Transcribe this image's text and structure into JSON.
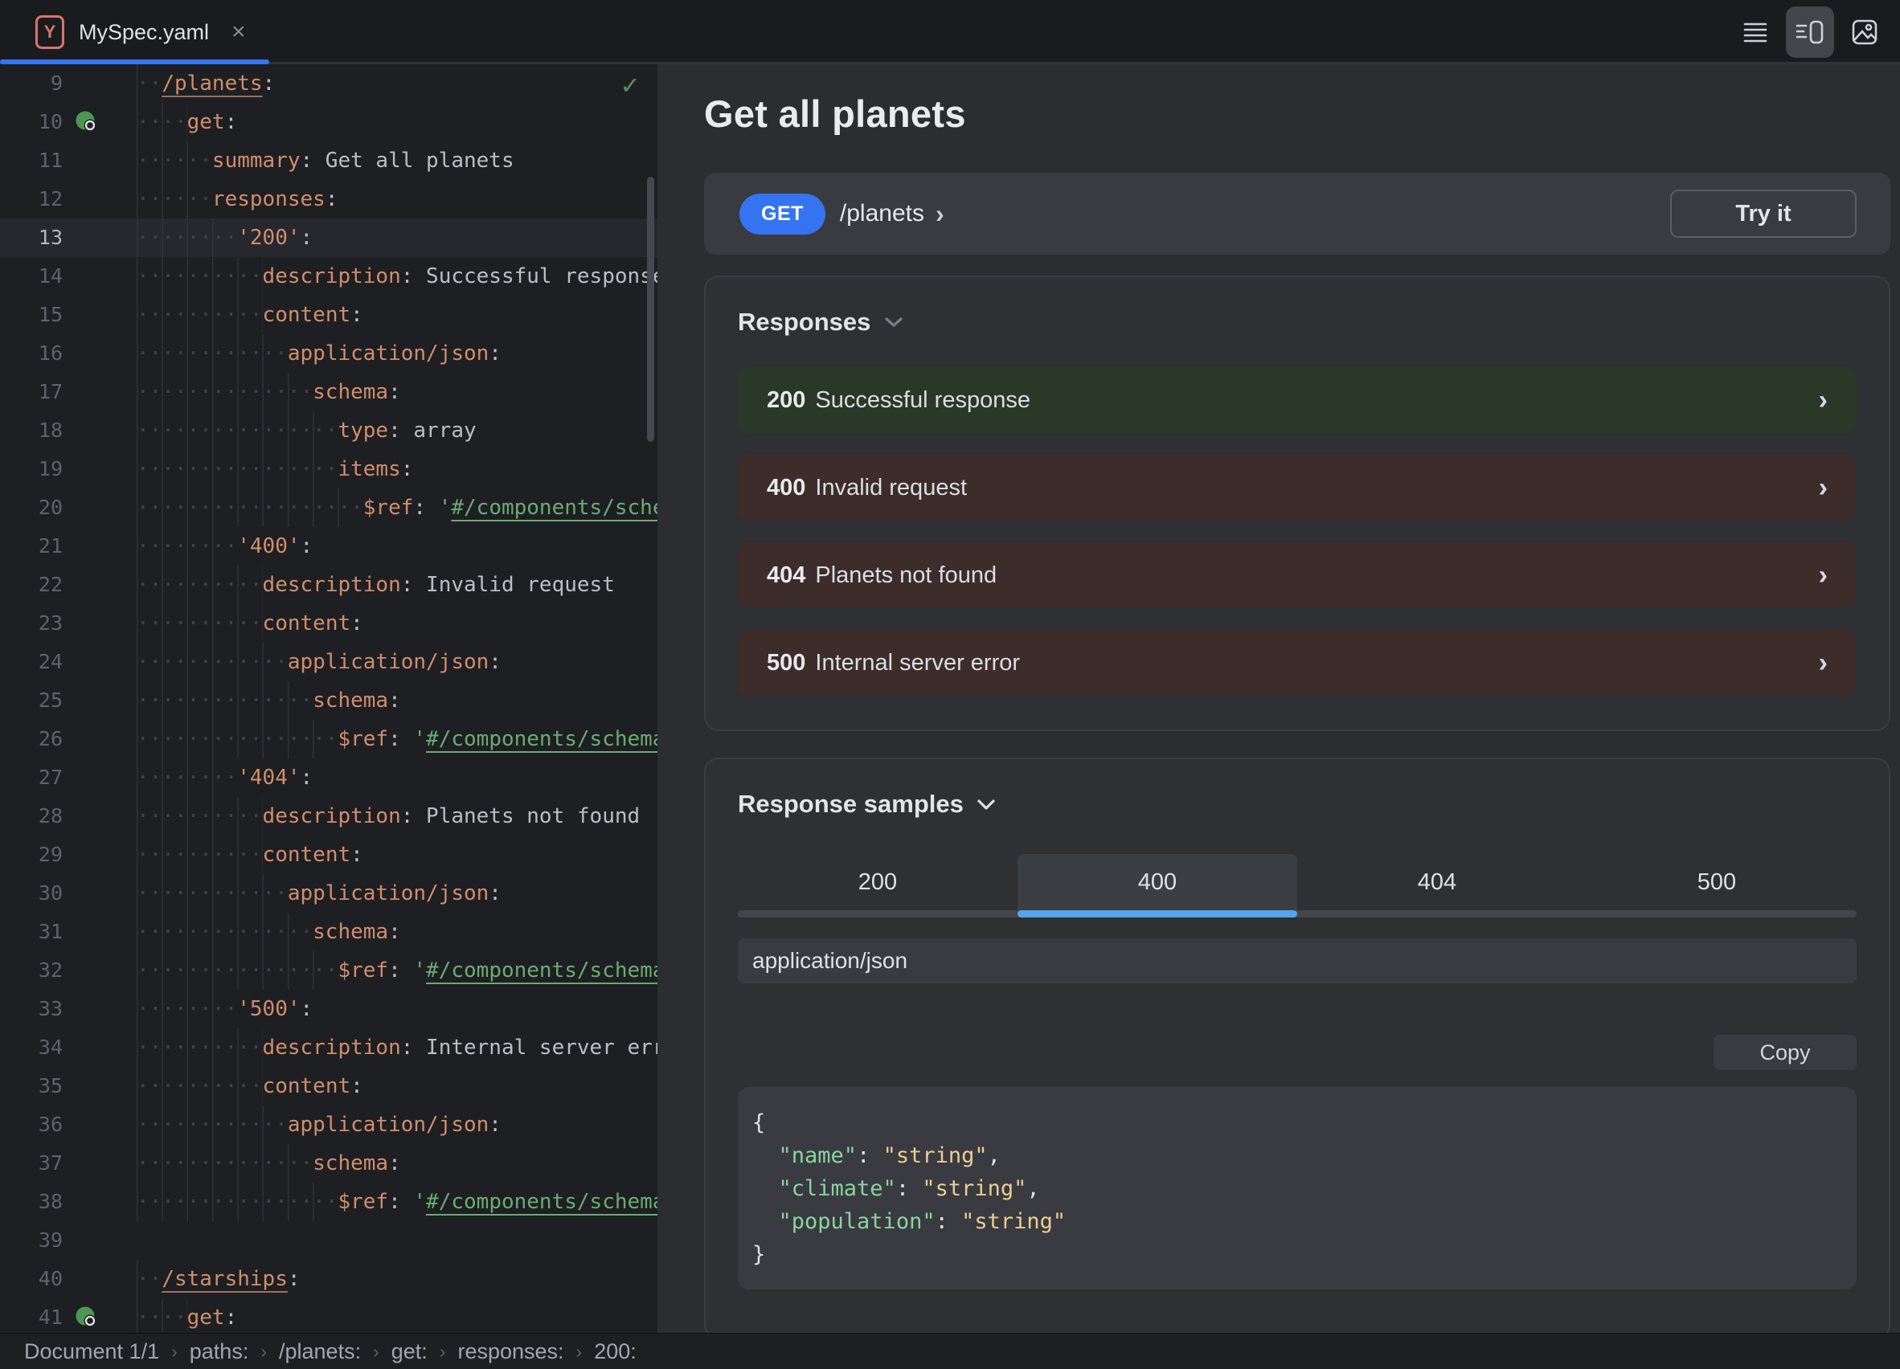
{
  "colors": {
    "accent_blue": "#3574F0",
    "sample_tab_underline_blue": "#55A5EC",
    "success_row_bg": "#2A3828",
    "error_row_bg": "#3C2D2B",
    "yaml_key_orange": "#CF8E6D",
    "yaml_string_green": "#6AAB73",
    "json_key_green": "#8BD3A0",
    "json_string_yellow": "#EBCE94",
    "file_icon_salmon": "#D5756C",
    "panel_bg": "#2B2D30",
    "editor_bg": "#1E1F22",
    "card_bg": "#393B40"
  },
  "window": {
    "tab": {
      "file_type_icon": "Y",
      "title": "MySpec.yaml",
      "close_icon": "×"
    },
    "view_toggles": [
      {
        "name": "editor-only",
        "selected": false
      },
      {
        "name": "editor-and-preview",
        "selected": true
      },
      {
        "name": "preview-only",
        "selected": false
      }
    ]
  },
  "editor": {
    "inspection_check": "✓",
    "lines": [
      {
        "num": 9,
        "indent": 2,
        "tokens": [
          [
            "keyu",
            "/planets"
          ],
          [
            "p",
            ":"
          ]
        ]
      },
      {
        "num": 10,
        "indent": 4,
        "icon": true,
        "tokens": [
          [
            "key",
            "get"
          ],
          [
            "p",
            ":"
          ]
        ]
      },
      {
        "num": 11,
        "indent": 6,
        "tokens": [
          [
            "key",
            "summary"
          ],
          [
            "p",
            ":"
          ],
          [
            "val",
            " Get all planets"
          ]
        ]
      },
      {
        "num": 12,
        "indent": 6,
        "tokens": [
          [
            "key",
            "responses"
          ],
          [
            "p",
            ":"
          ]
        ]
      },
      {
        "num": 13,
        "indent": 8,
        "hl": true,
        "tokens": [
          [
            "key",
            "'200'"
          ],
          [
            "p",
            ":"
          ]
        ]
      },
      {
        "num": 14,
        "indent": 10,
        "tokens": [
          [
            "key",
            "description"
          ],
          [
            "p",
            ":"
          ],
          [
            "val",
            " Successful response"
          ]
        ]
      },
      {
        "num": 15,
        "indent": 10,
        "tokens": [
          [
            "key",
            "content"
          ],
          [
            "p",
            ":"
          ]
        ]
      },
      {
        "num": 16,
        "indent": 12,
        "tokens": [
          [
            "key",
            "application/json"
          ],
          [
            "p",
            ":"
          ]
        ]
      },
      {
        "num": 17,
        "indent": 14,
        "tokens": [
          [
            "key",
            "schema"
          ],
          [
            "p",
            ":"
          ]
        ]
      },
      {
        "num": 18,
        "indent": 16,
        "tokens": [
          [
            "key",
            "type"
          ],
          [
            "p",
            ":"
          ],
          [
            "val",
            " array"
          ]
        ]
      },
      {
        "num": 19,
        "indent": 16,
        "tokens": [
          [
            "key",
            "items"
          ],
          [
            "p",
            ":"
          ]
        ]
      },
      {
        "num": 20,
        "indent": 18,
        "tokens": [
          [
            "key",
            "$ref"
          ],
          [
            "p",
            ":"
          ],
          [
            "str",
            " '"
          ],
          [
            "link",
            "#/components/schemas/Planet"
          ],
          [
            "str",
            "'"
          ]
        ]
      },
      {
        "num": 21,
        "indent": 8,
        "tokens": [
          [
            "key",
            "'400'"
          ],
          [
            "p",
            ":"
          ]
        ]
      },
      {
        "num": 22,
        "indent": 10,
        "tokens": [
          [
            "key",
            "description"
          ],
          [
            "p",
            ":"
          ],
          [
            "val",
            " Invalid request"
          ]
        ]
      },
      {
        "num": 23,
        "indent": 10,
        "tokens": [
          [
            "key",
            "content"
          ],
          [
            "p",
            ":"
          ]
        ]
      },
      {
        "num": 24,
        "indent": 12,
        "tokens": [
          [
            "key",
            "application/json"
          ],
          [
            "p",
            ":"
          ]
        ]
      },
      {
        "num": 25,
        "indent": 14,
        "tokens": [
          [
            "key",
            "schema"
          ],
          [
            "p",
            ":"
          ]
        ]
      },
      {
        "num": 26,
        "indent": 16,
        "tokens": [
          [
            "key",
            "$ref"
          ],
          [
            "p",
            ":"
          ],
          [
            "str",
            " '"
          ],
          [
            "link",
            "#/components/schemas/Error"
          ],
          [
            "str",
            "'"
          ]
        ]
      },
      {
        "num": 27,
        "indent": 8,
        "tokens": [
          [
            "key",
            "'404'"
          ],
          [
            "p",
            ":"
          ]
        ]
      },
      {
        "num": 28,
        "indent": 10,
        "tokens": [
          [
            "key",
            "description"
          ],
          [
            "p",
            ":"
          ],
          [
            "val",
            " Planets not found"
          ]
        ]
      },
      {
        "num": 29,
        "indent": 10,
        "tokens": [
          [
            "key",
            "content"
          ],
          [
            "p",
            ":"
          ]
        ]
      },
      {
        "num": 30,
        "indent": 12,
        "tokens": [
          [
            "key",
            "application/json"
          ],
          [
            "p",
            ":"
          ]
        ]
      },
      {
        "num": 31,
        "indent": 14,
        "tokens": [
          [
            "key",
            "schema"
          ],
          [
            "p",
            ":"
          ]
        ]
      },
      {
        "num": 32,
        "indent": 16,
        "tokens": [
          [
            "key",
            "$ref"
          ],
          [
            "p",
            ":"
          ],
          [
            "str",
            " '"
          ],
          [
            "link",
            "#/components/schemas/Error"
          ],
          [
            "str",
            "'"
          ]
        ]
      },
      {
        "num": 33,
        "indent": 8,
        "tokens": [
          [
            "key",
            "'500'"
          ],
          [
            "p",
            ":"
          ]
        ]
      },
      {
        "num": 34,
        "indent": 10,
        "tokens": [
          [
            "key",
            "description"
          ],
          [
            "p",
            ":"
          ],
          [
            "val",
            " Internal server error"
          ]
        ]
      },
      {
        "num": 35,
        "indent": 10,
        "tokens": [
          [
            "key",
            "content"
          ],
          [
            "p",
            ":"
          ]
        ]
      },
      {
        "num": 36,
        "indent": 12,
        "tokens": [
          [
            "key",
            "application/json"
          ],
          [
            "p",
            ":"
          ]
        ]
      },
      {
        "num": 37,
        "indent": 14,
        "tokens": [
          [
            "key",
            "schema"
          ],
          [
            "p",
            ":"
          ]
        ]
      },
      {
        "num": 38,
        "indent": 16,
        "tokens": [
          [
            "key",
            "$ref"
          ],
          [
            "p",
            ":"
          ],
          [
            "str",
            " '"
          ],
          [
            "link",
            "#/components/schemas/Error"
          ],
          [
            "str",
            "'"
          ]
        ]
      },
      {
        "num": 39,
        "indent": 0,
        "tokens": []
      },
      {
        "num": 40,
        "indent": 2,
        "tokens": [
          [
            "keyu",
            "/starships"
          ],
          [
            "p",
            ":"
          ]
        ]
      },
      {
        "num": 41,
        "indent": 4,
        "icon": true,
        "tokens": [
          [
            "key",
            "get"
          ],
          [
            "p",
            ":"
          ]
        ]
      }
    ]
  },
  "status_bar": {
    "separator": "›",
    "items": [
      "Document 1/1",
      "paths:",
      "/planets:",
      "get:",
      "responses:",
      "200:"
    ]
  },
  "preview": {
    "title": "Get all planets",
    "endpoint": {
      "method": "GET",
      "path": "/planets",
      "chevron": "›",
      "try_it_label": "Try it"
    },
    "responses": {
      "heading": "Responses",
      "chevron": "›",
      "rows": [
        {
          "code": "200",
          "label": "Successful response",
          "kind": "success"
        },
        {
          "code": "400",
          "label": "Invalid request",
          "kind": "error"
        },
        {
          "code": "404",
          "label": "Planets not found",
          "kind": "error"
        },
        {
          "code": "500",
          "label": "Internal server error",
          "kind": "error"
        }
      ]
    },
    "response_samples": {
      "heading": "Response samples",
      "tabs": [
        {
          "label": "200",
          "selected": false
        },
        {
          "label": "400",
          "selected": true
        },
        {
          "label": "404",
          "selected": false
        },
        {
          "label": "500",
          "selected": false
        }
      ],
      "content_type": "application/json",
      "copy_label": "Copy",
      "json_lines": [
        [
          [
            "p",
            "{"
          ]
        ],
        [
          [
            "ws",
            "  "
          ],
          [
            "k",
            "\"name\""
          ],
          [
            "p",
            ": "
          ],
          [
            "s",
            "\"string\""
          ],
          [
            "p",
            ","
          ]
        ],
        [
          [
            "ws",
            "  "
          ],
          [
            "k",
            "\"climate\""
          ],
          [
            "p",
            ": "
          ],
          [
            "s",
            "\"string\""
          ],
          [
            "p",
            ","
          ]
        ],
        [
          [
            "ws",
            "  "
          ],
          [
            "k",
            "\"population\""
          ],
          [
            "p",
            ": "
          ],
          [
            "s",
            "\"string\""
          ]
        ],
        [
          [
            "p",
            "}"
          ]
        ]
      ]
    }
  }
}
